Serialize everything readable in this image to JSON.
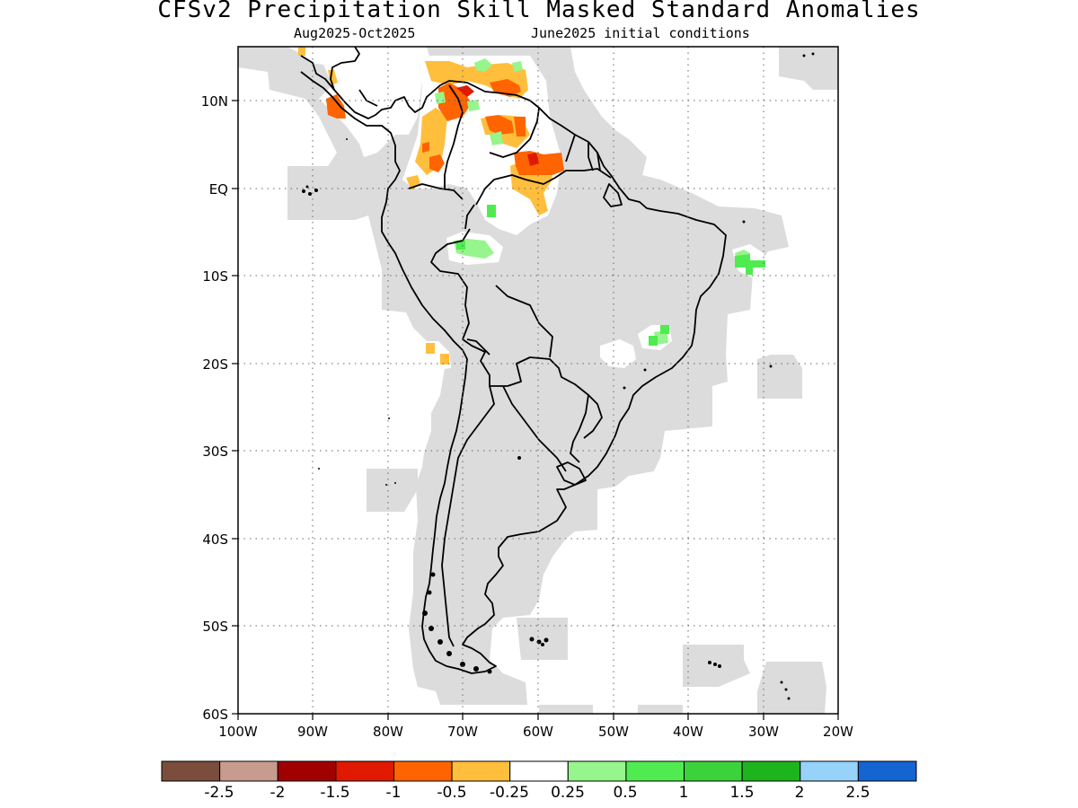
{
  "title": "CFSv2 Precipitation Skill Masked Standard Anomalies",
  "subtitle_left": "Aug2025-Oct2025",
  "subtitle_right": "June2025 initial conditions",
  "lat_labels": [
    "10N",
    "EQ",
    "10S",
    "20S",
    "30S",
    "40S",
    "50S",
    "60S"
  ],
  "lon_labels": [
    "100W",
    "90W",
    "80W",
    "70W",
    "60W",
    "50W",
    "40W",
    "30W",
    "20W"
  ],
  "legend": {
    "labels": [
      "-2.5",
      "-2",
      "-1.5",
      "-1",
      "-0.5",
      "-0.25",
      "0.25",
      "0.5",
      "1",
      "1.5",
      "2",
      "2.5"
    ],
    "colors": [
      "#7a4d3c",
      "#c89b8f",
      "#a00000",
      "#e01a00",
      "#ff6400",
      "#ffbe3c",
      "#ffffff",
      "#96f58c",
      "#50eb50",
      "#3cd23c",
      "#1eb41e",
      "#96d2fa",
      "#1464d2"
    ]
  },
  "mask_color": "#dcdcdc"
}
